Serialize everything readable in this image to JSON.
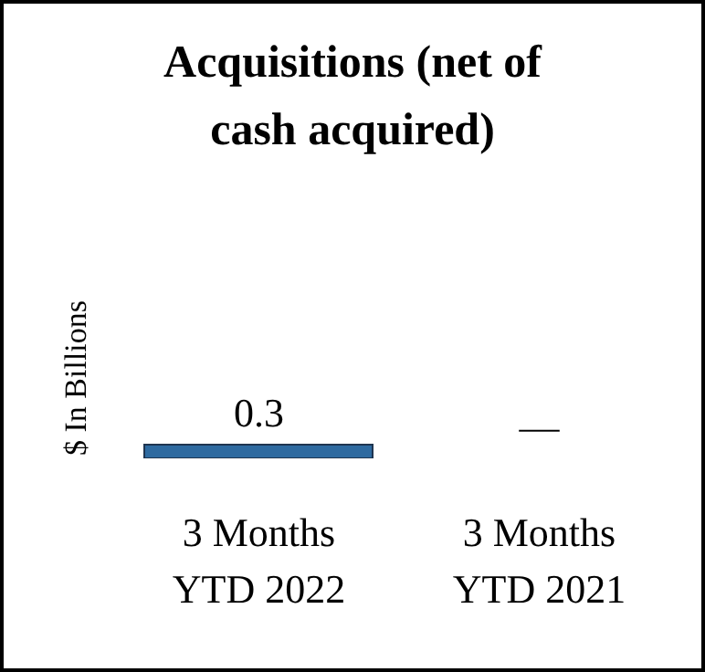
{
  "chart_data": {
    "type": "bar",
    "title": "Acquisitions (net of cash acquired)",
    "ylabel": "$ In Billions",
    "categories": [
      "3 Months YTD 2022",
      "3 Months YTD 2021"
    ],
    "values": [
      0.3,
      null
    ],
    "value_labels": [
      "0.3",
      "—"
    ],
    "color": "#2e6aa0",
    "tick_labels": "x"
  }
}
